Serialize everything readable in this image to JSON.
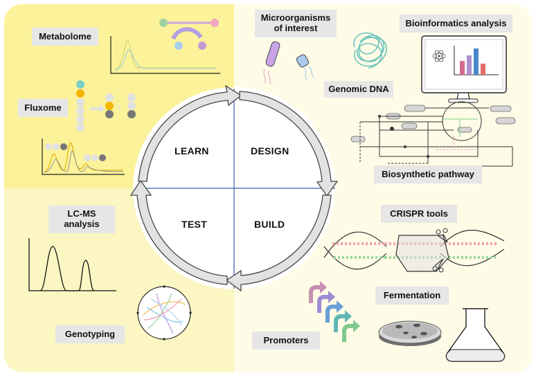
{
  "colors": {
    "learn_bg": "#fbf29a",
    "test_bg": "#fbf6c2",
    "design_bg": "#fefbe7",
    "build_bg": "#fefbe7",
    "cycle_arrow": "#e2e2e2",
    "divider": "#3c5aa6"
  },
  "cycle": {
    "learn": "LEARN",
    "design": "DESIGN",
    "test": "TEST",
    "build": "BUILD"
  },
  "labels": {
    "metabolome": "Metabolome",
    "fluxome": "Fluxome",
    "microorganisms": "Microorganisms of interest",
    "bioinformatics": "Bioinformatics analysis",
    "genomic_dna": "Genomic DNA",
    "biosynthetic_pathway": "Biosynthetic pathway",
    "lcms": "LC-MS analysis",
    "genotyping": "Genotyping",
    "crispr": "CRISPR tools",
    "fermentation": "Fermentation",
    "promoters": "Promoters"
  },
  "icons": [
    "metabolome-chart-icon",
    "fluxome-icon",
    "bacteria-icon",
    "dna-tangle-icon",
    "computer-monitor-icon",
    "pathway-network-icon",
    "chromatogram-icon",
    "circos-plot-icon",
    "crispr-dna-icon",
    "promoter-arrows-icon",
    "petri-dish-icon",
    "flask-icon"
  ]
}
